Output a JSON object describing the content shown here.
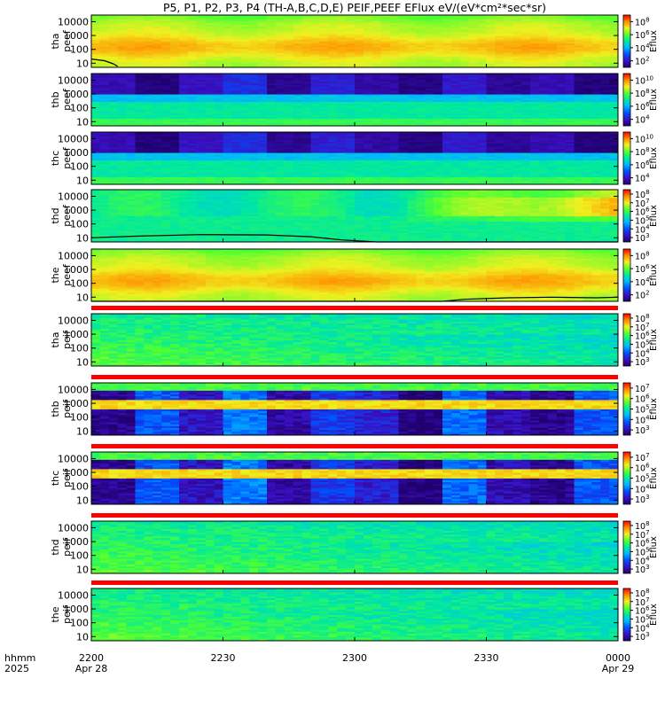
{
  "title": "P5, P1, P2, P3, P4 (TH-A,B,C,D,E) PEIF,PEEF EFlux eV/(eV*cm²*sec*sr)",
  "time_axis": {
    "row_label": "hhmm",
    "year": "2025",
    "ticks": [
      {
        "t": 0,
        "label": "2200",
        "sub": "Apr 28"
      },
      {
        "t": 30,
        "label": "2230",
        "sub": ""
      },
      {
        "t": 60,
        "label": "2300",
        "sub": ""
      },
      {
        "t": 90,
        "label": "2330",
        "sub": ""
      },
      {
        "t": 120,
        "label": "0000",
        "sub": "Apr 29"
      }
    ]
  },
  "colorbar_label": "Eflux",
  "chart_data": {
    "type": "heatmap",
    "x_units": "minutes after 2025-04-28 22:00",
    "x_range": [
      0,
      120
    ],
    "y_scale": "log",
    "y_range_eV": [
      5,
      30000
    ],
    "y_ticks": [
      "10",
      "100",
      "1000",
      "10000"
    ],
    "panels": [
      {
        "label1": "tha",
        "label2": "peef",
        "style": "hot",
        "cb_exps": [
          "2",
          "4",
          "6",
          "8"
        ],
        "cb_range": [
          1,
          9
        ],
        "line": [
          [
            0,
            20
          ],
          [
            3,
            15
          ],
          [
            5,
            9
          ],
          [
            6,
            6
          ]
        ]
      },
      {
        "label1": "thb",
        "label2": "peef",
        "style": "blocky_mid",
        "cb_exps": [
          "4",
          "6",
          "8",
          "10"
        ],
        "cb_range": [
          3,
          11
        ],
        "line": []
      },
      {
        "label1": "thc",
        "label2": "peef",
        "style": "blocky_mid",
        "cb_exps": [
          "4",
          "6",
          "8",
          "10"
        ],
        "cb_range": [
          3,
          11
        ],
        "line": []
      },
      {
        "label1": "thd",
        "label2": "peef",
        "style": "green_orange",
        "cb_exps": [
          "3",
          "4",
          "5",
          "6",
          "7",
          "8"
        ],
        "cb_range": [
          2.5,
          8.5
        ],
        "line": [
          [
            0,
            10
          ],
          [
            10,
            13
          ],
          [
            25,
            17
          ],
          [
            40,
            16
          ],
          [
            50,
            12
          ],
          [
            57,
            7
          ],
          [
            65,
            5
          ],
          [
            80,
            5
          ],
          [
            100,
            5
          ],
          [
            120,
            5
          ]
        ]
      },
      {
        "label1": "the",
        "label2": "peef",
        "style": "hot",
        "cb_exps": [
          "2",
          "4",
          "6",
          "8"
        ],
        "cb_range": [
          1,
          9
        ],
        "line": [
          [
            0,
            5
          ],
          [
            10,
            5
          ],
          [
            40,
            5
          ],
          [
            60,
            5
          ],
          [
            80,
            5
          ],
          [
            85,
            7
          ],
          [
            95,
            9
          ],
          [
            105,
            10
          ],
          [
            115,
            9
          ],
          [
            120,
            10
          ]
        ]
      },
      {
        "label1": "tha",
        "label2": "peif",
        "style": "cool",
        "cb_exps": [
          "3",
          "4",
          "5",
          "6",
          "7",
          "8"
        ],
        "cb_range": [
          2.5,
          8.5
        ],
        "line": []
      },
      {
        "label1": "thb",
        "label2": "peif",
        "style": "blocky_ion",
        "cb_exps": [
          "3",
          "4",
          "5",
          "6",
          "7"
        ],
        "cb_range": [
          2.5,
          7.5
        ],
        "line": []
      },
      {
        "label1": "thc",
        "label2": "peif",
        "style": "blocky_ion",
        "cb_exps": [
          "3",
          "4",
          "5",
          "6",
          "7"
        ],
        "cb_range": [
          2.5,
          7.5
        ],
        "line": []
      },
      {
        "label1": "thd",
        "label2": "peif",
        "style": "cool",
        "cb_exps": [
          "3",
          "4",
          "5",
          "6",
          "7",
          "8"
        ],
        "cb_range": [
          2.5,
          8.5
        ],
        "line": []
      },
      {
        "label1": "the",
        "label2": "peif",
        "style": "cool",
        "cb_exps": [
          "3",
          "4",
          "5",
          "6",
          "7",
          "8"
        ],
        "cb_range": [
          2.5,
          8.5
        ],
        "line": []
      }
    ]
  }
}
